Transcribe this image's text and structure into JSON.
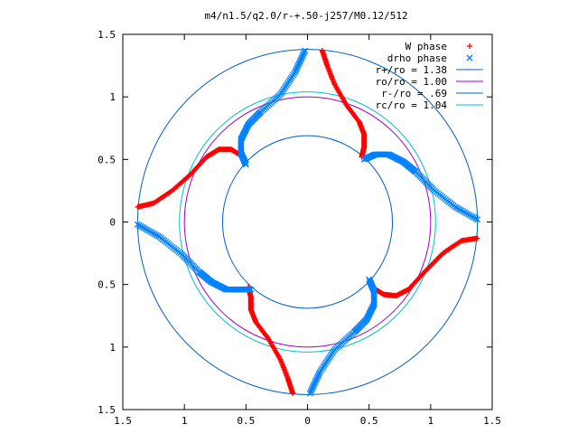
{
  "chart_data": {
    "type": "scatter",
    "title": "m4/n1.5/q2.0/r-+.50-j257/M0.12/512",
    "xlabel": "",
    "ylabel": "",
    "xlim": [
      -1.5,
      1.5
    ],
    "ylim": [
      -1.5,
      1.5
    ],
    "x_tick_labels": [
      "1.5",
      "1",
      "0.5",
      "0",
      "0.5",
      "1",
      "1.5"
    ],
    "y_tick_labels": [
      "1.5",
      "1",
      "0.5",
      "0",
      "0.5",
      "1",
      "1.5"
    ],
    "legend_position": "top-right",
    "legend": [
      {
        "label": "W phase",
        "symbol": "+",
        "color": "#ff0000"
      },
      {
        "label": "drho phase",
        "symbol": "x",
        "color": "#0080ff"
      },
      {
        "label": "r+/ro = 1.38",
        "symbol": "line",
        "color": "#0060c0"
      },
      {
        "label": "ro/ro = 1.00",
        "symbol": "line",
        "color": "#a000c0"
      },
      {
        "label": "r-/ro = .69",
        "symbol": "line",
        "color": "#0060c0"
      },
      {
        "label": "rc/ro = 1.04",
        "symbol": "line",
        "color": "#00c0d0"
      }
    ],
    "circles": [
      {
        "name": "r+/ro = 1.38",
        "radius": 1.38,
        "color": "#0060c0"
      },
      {
        "name": "ro/ro = 1.00",
        "radius": 1.0,
        "color": "#a000c0"
      },
      {
        "name": "r-/ro = .69",
        "radius": 0.69,
        "color": "#0060c0"
      },
      {
        "name": "rc/ro = 1.04",
        "radius": 1.04,
        "color": "#00c0d0"
      }
    ],
    "series": [
      {
        "name": "W phase",
        "color": "#ff0000",
        "symbol": "+",
        "arms": [
          [
            [
              -1.38,
              0.12
            ],
            [
              -1.25,
              0.15
            ],
            [
              -1.1,
              0.25
            ],
            [
              -0.95,
              0.38
            ],
            [
              -0.82,
              0.52
            ],
            [
              -0.72,
              0.58
            ],
            [
              -0.62,
              0.58
            ],
            [
              -0.52,
              0.52
            ]
          ],
          [
            [
              0.12,
              1.37
            ],
            [
              0.16,
              1.25
            ],
            [
              0.22,
              1.1
            ],
            [
              0.32,
              0.93
            ],
            [
              0.42,
              0.8
            ],
            [
              0.46,
              0.7
            ],
            [
              0.46,
              0.6
            ],
            [
              0.44,
              0.52
            ]
          ],
          [
            [
              1.38,
              -0.13
            ],
            [
              1.25,
              -0.15
            ],
            [
              1.1,
              -0.25
            ],
            [
              0.95,
              -0.4
            ],
            [
              0.82,
              -0.54
            ],
            [
              0.72,
              -0.59
            ],
            [
              0.62,
              -0.58
            ],
            [
              0.52,
              -0.52
            ]
          ],
          [
            [
              -0.12,
              -1.37
            ],
            [
              -0.16,
              -1.25
            ],
            [
              -0.22,
              -1.1
            ],
            [
              -0.32,
              -0.93
            ],
            [
              -0.42,
              -0.8
            ],
            [
              -0.46,
              -0.7
            ],
            [
              -0.46,
              -0.6
            ],
            [
              -0.48,
              -0.52
            ]
          ]
        ]
      },
      {
        "name": "drho phase",
        "color": "#0080ff",
        "symbol": "x",
        "arms": [
          [
            [
              -0.02,
              1.37
            ],
            [
              -0.1,
              1.2
            ],
            [
              -0.22,
              1.02
            ],
            [
              -0.38,
              0.88
            ],
            [
              -0.48,
              0.78
            ],
            [
              -0.54,
              0.66
            ],
            [
              -0.54,
              0.55
            ],
            [
              -0.5,
              0.46
            ]
          ],
          [
            [
              1.38,
              0.02
            ],
            [
              1.2,
              0.12
            ],
            [
              1.02,
              0.26
            ],
            [
              0.88,
              0.4
            ],
            [
              0.78,
              0.48
            ],
            [
              0.66,
              0.54
            ],
            [
              0.55,
              0.54
            ],
            [
              0.46,
              0.5
            ]
          ],
          [
            [
              0.02,
              -1.37
            ],
            [
              0.1,
              -1.2
            ],
            [
              0.22,
              -1.02
            ],
            [
              0.38,
              -0.88
            ],
            [
              0.48,
              -0.78
            ],
            [
              0.54,
              -0.66
            ],
            [
              0.54,
              -0.55
            ],
            [
              0.5,
              -0.46
            ]
          ],
          [
            [
              -1.38,
              -0.02
            ],
            [
              -1.2,
              -0.12
            ],
            [
              -1.02,
              -0.26
            ],
            [
              -0.88,
              -0.4
            ],
            [
              -0.78,
              -0.48
            ],
            [
              -0.66,
              -0.54
            ],
            [
              -0.55,
              -0.54
            ],
            [
              -0.46,
              -0.54
            ]
          ]
        ]
      }
    ]
  }
}
